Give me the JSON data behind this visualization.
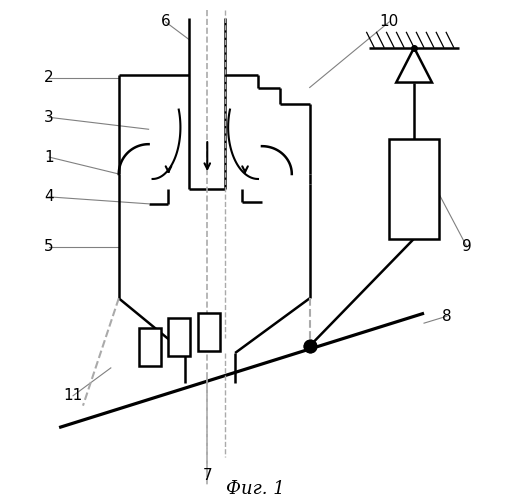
{
  "title": "Фиг. 1",
  "bg_color": "#ffffff",
  "lc": "#000000",
  "dc": "#aaaaaa",
  "lw": 1.8,
  "thin": 0.9
}
